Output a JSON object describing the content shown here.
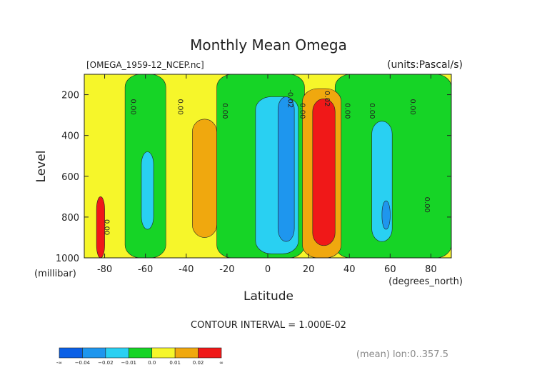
{
  "chart_data": {
    "type": "heatmap",
    "title": "Monthly Mean Omega",
    "file_label": "[OMEGA_1959-12_NCEP.nc]",
    "units_label": "(units:Pascal/s)",
    "xlabel": "Latitude",
    "x_units": "(degrees_north)",
    "ylabel": "Level",
    "y_units": "(millibar)",
    "xlim": [
      -90,
      90
    ],
    "ylim": [
      1000,
      100
    ],
    "x_ticks": [
      -80,
      -60,
      -40,
      -20,
      0,
      20,
      40,
      60,
      80
    ],
    "x_tick_labels": [
      "-80",
      "-60",
      "-40",
      "-20",
      "0",
      "20",
      "40",
      "60",
      "80"
    ],
    "y_ticks": [
      200,
      400,
      600,
      800,
      1000
    ],
    "y_tick_labels": [
      "200",
      "400",
      "600",
      "800",
      "1000"
    ],
    "contour_interval_text": "CONTOUR INTERVAL = 1.000E-02",
    "footer_text": "(mean) lon:0..357.5",
    "colorbar": {
      "labels": [
        "-∞",
        "−0.04",
        "−0.02",
        "−0.01",
        "0.0",
        "0.01",
        "0.02",
        "∞"
      ],
      "colors": [
        "#0a5fe6",
        "#1e96ee",
        "#29d0f2",
        "#16d426",
        "#f6f62a",
        "#f0a80e",
        "#f01818"
      ]
    },
    "regions": [
      {
        "level_class": "0.0 to 0.01",
        "color": "#f6f62a",
        "lat": [
          -90,
          90
        ],
        "lev": [
          100,
          1000
        ]
      },
      {
        "level_class": "-0.01 to 0.0",
        "color": "#16d426",
        "lat": [
          -70,
          -50
        ],
        "lev": [
          100,
          1000
        ]
      },
      {
        "level_class": "-0.01 to 0.0",
        "color": "#16d426",
        "lat": [
          -25,
          18
        ],
        "lev": [
          100,
          1000
        ]
      },
      {
        "level_class": "-0.01 to 0.0",
        "color": "#16d426",
        "lat": [
          33,
          90
        ],
        "lev": [
          100,
          1000
        ]
      },
      {
        "level_class": "0.01 to 0.02",
        "color": "#f0a80e",
        "lat": [
          -37,
          -25
        ],
        "lev": [
          320,
          900
        ]
      },
      {
        "level_class": "0.01 to 0.02",
        "color": "#f0a80e",
        "lat": [
          17,
          36
        ],
        "lev": [
          170,
          1000
        ]
      },
      {
        "level_class": "0.02 to inf",
        "color": "#f01818",
        "lat": [
          22,
          33
        ],
        "lev": [
          220,
          940
        ]
      },
      {
        "level_class": "0.02 to inf",
        "color": "#f01818",
        "lat": [
          -84,
          -80
        ],
        "lev": [
          700,
          1000
        ]
      },
      {
        "level_class": "-0.02 to -0.01",
        "color": "#29d0f2",
        "lat": [
          -6,
          15
        ],
        "lev": [
          210,
          980
        ]
      },
      {
        "level_class": "-0.04 to -0.02",
        "color": "#1e96ee",
        "lat": [
          5,
          13
        ],
        "lev": [
          210,
          920
        ]
      },
      {
        "level_class": "-0.02 to -0.01",
        "color": "#29d0f2",
        "lat": [
          51,
          61
        ],
        "lev": [
          330,
          920
        ]
      },
      {
        "level_class": "-0.04 to -0.02",
        "color": "#1e96ee",
        "lat": [
          56,
          60
        ],
        "lev": [
          720,
          860
        ]
      },
      {
        "level_class": "-0.02 to -0.01",
        "color": "#29d0f2",
        "lat": [
          -62,
          -56
        ],
        "lev": [
          480,
          860
        ]
      }
    ],
    "contour_labels": [
      "0.00",
      "0.00",
      "0.00",
      "-0.02",
      "0.00",
      "0.02",
      "0.00",
      "0.00",
      "0.00",
      "0.00",
      "0.00"
    ]
  }
}
